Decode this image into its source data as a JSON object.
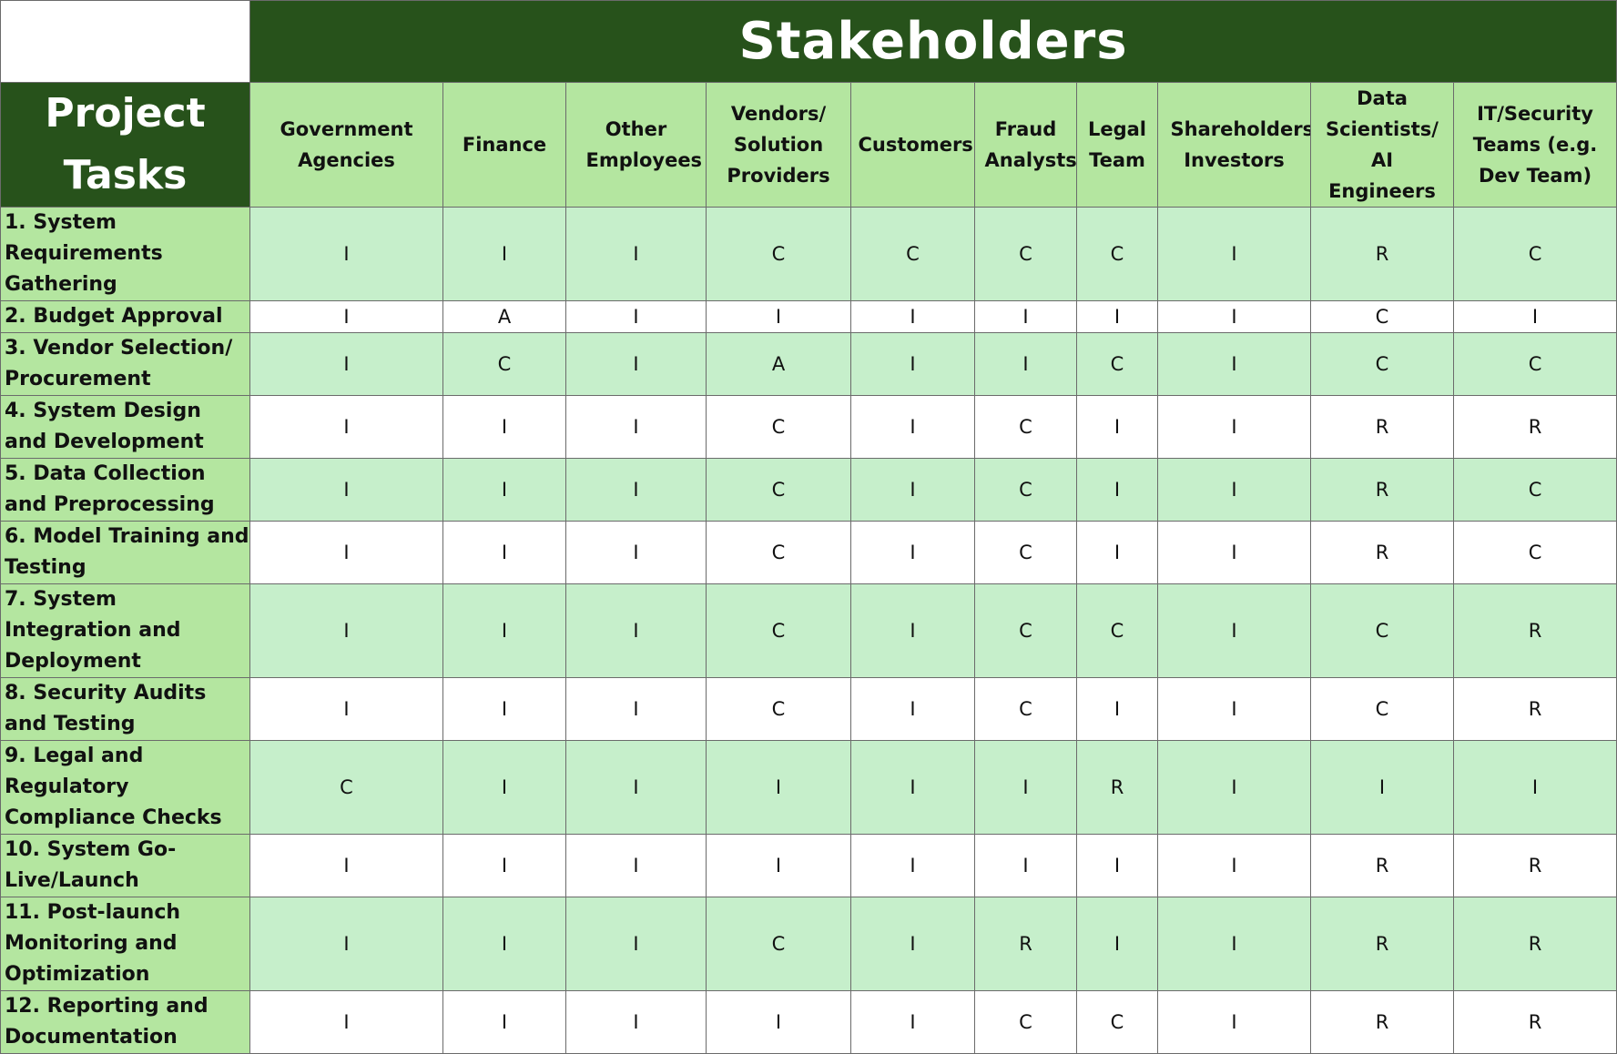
{
  "title": "Stakeholders",
  "row_header": "Project Tasks",
  "stakeholders": [
    "Government Agencies",
    "Finance",
    "Other Employees",
    "Vendors/ Solution Providers",
    "Customers",
    "Fraud Analysts",
    "Legal Team",
    "Shareholders/ Investors",
    "Data Scientists/ AI Engineers",
    "IT/Security Teams (e.g. Dev Team)"
  ],
  "tasks": [
    {
      "label": "1. System Requirements Gathering",
      "cells": [
        "I",
        "I",
        "I",
        "C",
        "C",
        "C",
        "C",
        "I",
        "R",
        "C"
      ]
    },
    {
      "label": "2. Budget Approval",
      "cells": [
        "I",
        "A",
        "I",
        "I",
        "I",
        "I",
        "I",
        "I",
        "C",
        "I"
      ]
    },
    {
      "label": "3. Vendor Selection/ Procurement",
      "cells": [
        "I",
        "C",
        "I",
        "A",
        "I",
        "I",
        "C",
        "I",
        "C",
        "C"
      ]
    },
    {
      "label": "4. System Design and Development",
      "cells": [
        "I",
        "I",
        "I",
        "C",
        "I",
        "C",
        "I",
        "I",
        "R",
        "R"
      ]
    },
    {
      "label": "5. Data Collection and Preprocessing",
      "cells": [
        "I",
        "I",
        "I",
        "C",
        "I",
        "C",
        "I",
        "I",
        "R",
        "C"
      ]
    },
    {
      "label": "6. Model Training and Testing",
      "cells": [
        "I",
        "I",
        "I",
        "C",
        "I",
        "C",
        "I",
        "I",
        "R",
        "C"
      ]
    },
    {
      "label": "7. System Integration and Deployment",
      "cells": [
        "I",
        "I",
        "I",
        "C",
        "I",
        "C",
        "C",
        "I",
        "C",
        "R"
      ]
    },
    {
      "label": "8. Security Audits and Testing",
      "cells": [
        "I",
        "I",
        "I",
        "C",
        "I",
        "C",
        "I",
        "I",
        "C",
        "R"
      ]
    },
    {
      "label": "9. Legal and Regulatory Compliance Checks",
      "cells": [
        "C",
        "I",
        "I",
        "I",
        "I",
        "I",
        "R",
        "I",
        "I",
        "I"
      ]
    },
    {
      "label": "10. System Go-Live/Launch",
      "cells": [
        "I",
        "I",
        "I",
        "I",
        "I",
        "I",
        "I",
        "I",
        "R",
        "R"
      ]
    },
    {
      "label": "11. Post-launch Monitoring and Optimization",
      "cells": [
        "I",
        "I",
        "I",
        "C",
        "I",
        "R",
        "I",
        "I",
        "R",
        "R"
      ]
    },
    {
      "label": "12. Reporting and Documentation",
      "cells": [
        "I",
        "I",
        "I",
        "I",
        "I",
        "C",
        "C",
        "I",
        "R",
        "R"
      ]
    }
  ]
}
